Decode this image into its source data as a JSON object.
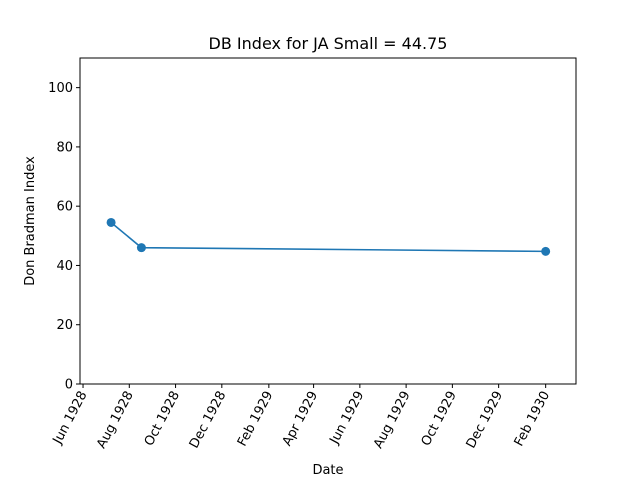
{
  "chart_data": {
    "type": "line",
    "title": "DB Index for JA Small = 44.75",
    "xlabel": "Date",
    "ylabel": "Don Bradman Index",
    "x_type": "date",
    "xlim": [
      "1928-05-28",
      "1930-03-13"
    ],
    "ylim": [
      0,
      110
    ],
    "x_ticks": [
      "1928-06-01",
      "1928-08-01",
      "1928-10-01",
      "1928-12-01",
      "1929-02-01",
      "1929-04-01",
      "1929-06-01",
      "1929-08-01",
      "1929-10-01",
      "1929-12-01",
      "1930-02-01"
    ],
    "x_tick_labels": [
      "Jun 1928",
      "Aug 1928",
      "Oct 1928",
      "Dec 1928",
      "Feb 1929",
      "Apr 1929",
      "Jun 1929",
      "Aug 1929",
      "Oct 1929",
      "Dec 1929",
      "Feb 1930"
    ],
    "y_ticks": [
      0,
      20,
      40,
      60,
      80,
      100
    ],
    "y_tick_labels": [
      "0",
      "20",
      "40",
      "60",
      "80",
      "100"
    ],
    "grid": false,
    "series": [
      {
        "color": "#1f77b4",
        "x": [
          "1928-07-08",
          "1928-08-17",
          "1930-02-01"
        ],
        "y": [
          54.5,
          46.0,
          44.75
        ]
      }
    ]
  }
}
